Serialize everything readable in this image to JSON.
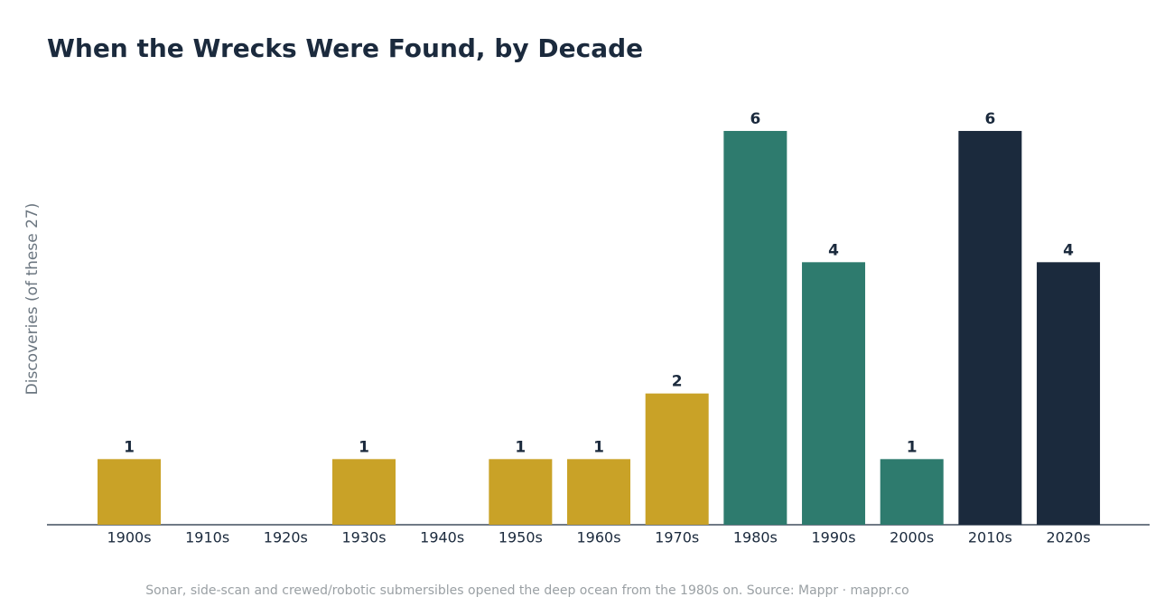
{
  "chart_data": {
    "type": "bar",
    "title": "When the Wrecks Were Found, by Decade",
    "y_label": "Discoveries (of these 27)",
    "footnote": "Sonar, side-scan and crewed/robotic submersibles opened the deep ocean from the 1980s on.  Source: Mappr · mappr.co",
    "categories": [
      "1900s",
      "1910s",
      "1920s",
      "1930s",
      "1940s",
      "1950s",
      "1960s",
      "1970s",
      "1980s",
      "1990s",
      "2000s",
      "2010s",
      "2020s"
    ],
    "values": [
      1,
      0,
      0,
      1,
      0,
      1,
      1,
      2,
      6,
      4,
      1,
      6,
      4
    ],
    "colors": [
      "#c9a227",
      "#c9a227",
      "#c9a227",
      "#c9a227",
      "#c9a227",
      "#c9a227",
      "#c9a227",
      "#c9a227",
      "#2e7b6e",
      "#2e7b6e",
      "#2e7b6e",
      "#1b2a3d",
      "#1b2a3d"
    ],
    "ylim": [
      0,
      6.5
    ]
  }
}
